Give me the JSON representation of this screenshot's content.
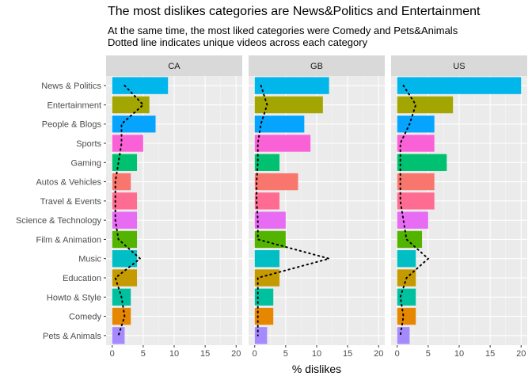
{
  "chart_data": {
    "type": "bar",
    "orientation": "horizontal",
    "title": "The most dislikes categories are News&Politics and Entertainment",
    "subtitle_lines": [
      "At the same time, the most liked categories were Comedy and Pets&Animals",
      "Dotted line indicates unique videos across each category"
    ],
    "xlabel": "% dislikes",
    "xlim": [
      0,
      20
    ],
    "xticks": [
      "0",
      "5",
      "10",
      "15",
      "20"
    ],
    "grid": true,
    "categories": [
      "News & Politics",
      "Entertainment",
      "People & Blogs",
      "Sports",
      "Gaming",
      "Autos & Vehicles",
      "Travel & Events",
      "Science & Technology",
      "Film & Animation",
      "Music",
      "Education",
      "Howto & Style",
      "Comedy",
      "Pets & Animals"
    ],
    "category_colors": [
      "#00B6EB",
      "#A3A500",
      "#06A4FF",
      "#FB61D7",
      "#00C071",
      "#F8766D",
      "#FF6C91",
      "#E76BF3",
      "#53B400",
      "#00BFC4",
      "#C49A00",
      "#00C19F",
      "#E58700",
      "#A58AFF"
    ],
    "panels": [
      {
        "name": "CA",
        "dislikes": [
          9,
          6,
          7,
          5,
          4,
          3,
          4,
          4,
          4,
          4,
          4,
          3,
          3,
          2
        ],
        "unique_videos": [
          2,
          5,
          1.5,
          1.5,
          1,
          0.5,
          0.5,
          0.5,
          1,
          4.5,
          0.5,
          1.5,
          2,
          1
        ]
      },
      {
        "name": "GB",
        "dislikes": [
          12,
          11,
          8,
          9,
          4,
          7,
          4,
          5,
          5,
          4,
          4,
          3,
          3,
          2
        ],
        "unique_videos": [
          1,
          2,
          1,
          0.5,
          0.5,
          0.3,
          0.3,
          0.5,
          0.5,
          12,
          0.5,
          0.5,
          0.5,
          0.5
        ]
      },
      {
        "name": "US",
        "dislikes": [
          20,
          9,
          6,
          6,
          8,
          6,
          6,
          5,
          4,
          3,
          3,
          3,
          3,
          2
        ],
        "unique_videos": [
          1,
          3,
          2,
          0.5,
          0.5,
          0.5,
          0.5,
          1,
          1.5,
          5,
          1.5,
          0.5,
          1,
          0.5
        ]
      }
    ]
  }
}
